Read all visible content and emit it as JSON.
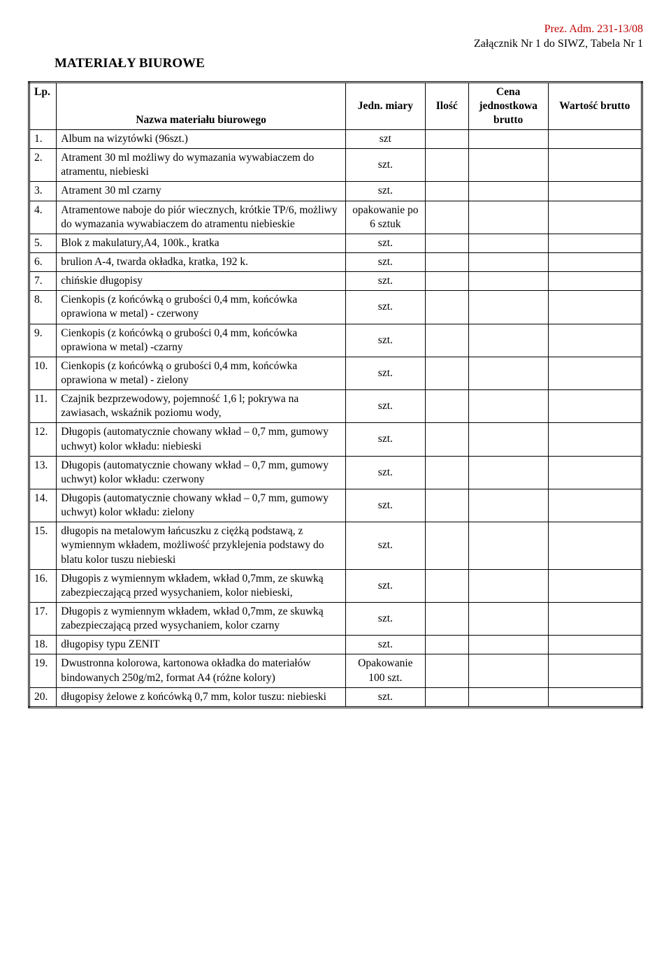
{
  "header": {
    "line1": "Prez. Adm. 231-13/08",
    "line2": "Załącznik Nr 1 do SIWZ, Tabela Nr 1"
  },
  "title": "MATERIAŁY  BIUROWE",
  "table": {
    "columns": {
      "lp": "Lp.",
      "name": "Nazwa materiału biurowego",
      "unit": "Jedn. miary",
      "qty": "Ilość",
      "unitprice_l1": "Cena",
      "unitprice_l2": "jednostkowa",
      "unitprice_l3": "brutto",
      "value": "Wartość brutto"
    },
    "rows": [
      {
        "lp": "1.",
        "name": "Album na wizytówki (96szt.)",
        "unit": "szt"
      },
      {
        "lp": "2.",
        "name": "Atrament 30 ml możliwy do wymazania wywabiaczem do atramentu, niebieski",
        "unit": "szt."
      },
      {
        "lp": "3.",
        "name": "Atrament 30 ml czarny",
        "unit": "szt."
      },
      {
        "lp": "4.",
        "name": "Atramentowe naboje do piór wiecznych, krótkie TP/6, możliwy do wymazania wywabiaczem do atramentu niebieskie",
        "unit": "opakowanie po 6 sztuk"
      },
      {
        "lp": "5.",
        "name": "Blok z makulatury,A4, 100k., kratka",
        "unit": "szt."
      },
      {
        "lp": "6.",
        "name": "brulion A-4, twarda okładka, kratka, 192 k.",
        "unit": "szt."
      },
      {
        "lp": "7.",
        "name": "chińskie długopisy",
        "unit": "szt."
      },
      {
        "lp": "8.",
        "name": "Cienkopis (z końcówką o grubości 0,4 mm, końcówka oprawiona w metal) - czerwony",
        "unit": "szt."
      },
      {
        "lp": "9.",
        "name": "Cienkopis (z końcówką o grubości 0,4 mm, końcówka oprawiona w metal) -czarny",
        "unit": "szt."
      },
      {
        "lp": "10.",
        "name": "Cienkopis (z końcówką o grubości 0,4 mm, końcówka oprawiona w metal) - zielony",
        "unit": "szt."
      },
      {
        "lp": "11.",
        "name": "Czajnik bezprzewodowy, pojemność 1,6 l; pokrywa na zawiasach, wskaźnik poziomu wody,",
        "unit": "szt."
      },
      {
        "lp": "12.",
        "name": "Długopis (automatycznie chowany wkład – 0,7 mm, gumowy uchwyt) kolor wkładu: niebieski",
        "unit": "szt."
      },
      {
        "lp": "13.",
        "name": "Długopis (automatycznie chowany wkład – 0,7 mm, gumowy uchwyt) kolor wkładu: czerwony",
        "unit": "szt."
      },
      {
        "lp": "14.",
        "name": "Długopis (automatycznie chowany wkład – 0,7 mm, gumowy uchwyt) kolor wkładu: zielony",
        "unit": "szt."
      },
      {
        "lp": "15.",
        "name": "długopis na metalowym łańcuszku z ciężką podstawą, z wymiennym wkładem, możliwość przyklejenia podstawy do blatu kolor tuszu niebieski",
        "unit": "szt."
      },
      {
        "lp": "16.",
        "name": "Długopis z wymiennym wkładem, wkład 0,7mm, ze skuwką zabezpieczającą przed wysychaniem, kolor niebieski,",
        "unit": "szt."
      },
      {
        "lp": "17.",
        "name": "Długopis z wymiennym wkładem, wkład 0,7mm, ze skuwką zabezpieczającą przed wysychaniem, kolor czarny",
        "unit": "szt."
      },
      {
        "lp": "18.",
        "name": "długopisy typu ZENIT",
        "unit": "szt."
      },
      {
        "lp": "19.",
        "name": "Dwustronna kolorowa, kartonowa okładka do materiałów bindowanych 250g/m2, format A4 (różne kolory)",
        "unit": "Opakowanie 100 szt."
      },
      {
        "lp": "20.",
        "name": "długopisy żelowe z końcówką 0,7 mm, kolor tuszu: niebieski",
        "unit": "szt."
      }
    ]
  },
  "colors": {
    "red": "#c00000",
    "black": "#000000",
    "background": "#ffffff"
  }
}
